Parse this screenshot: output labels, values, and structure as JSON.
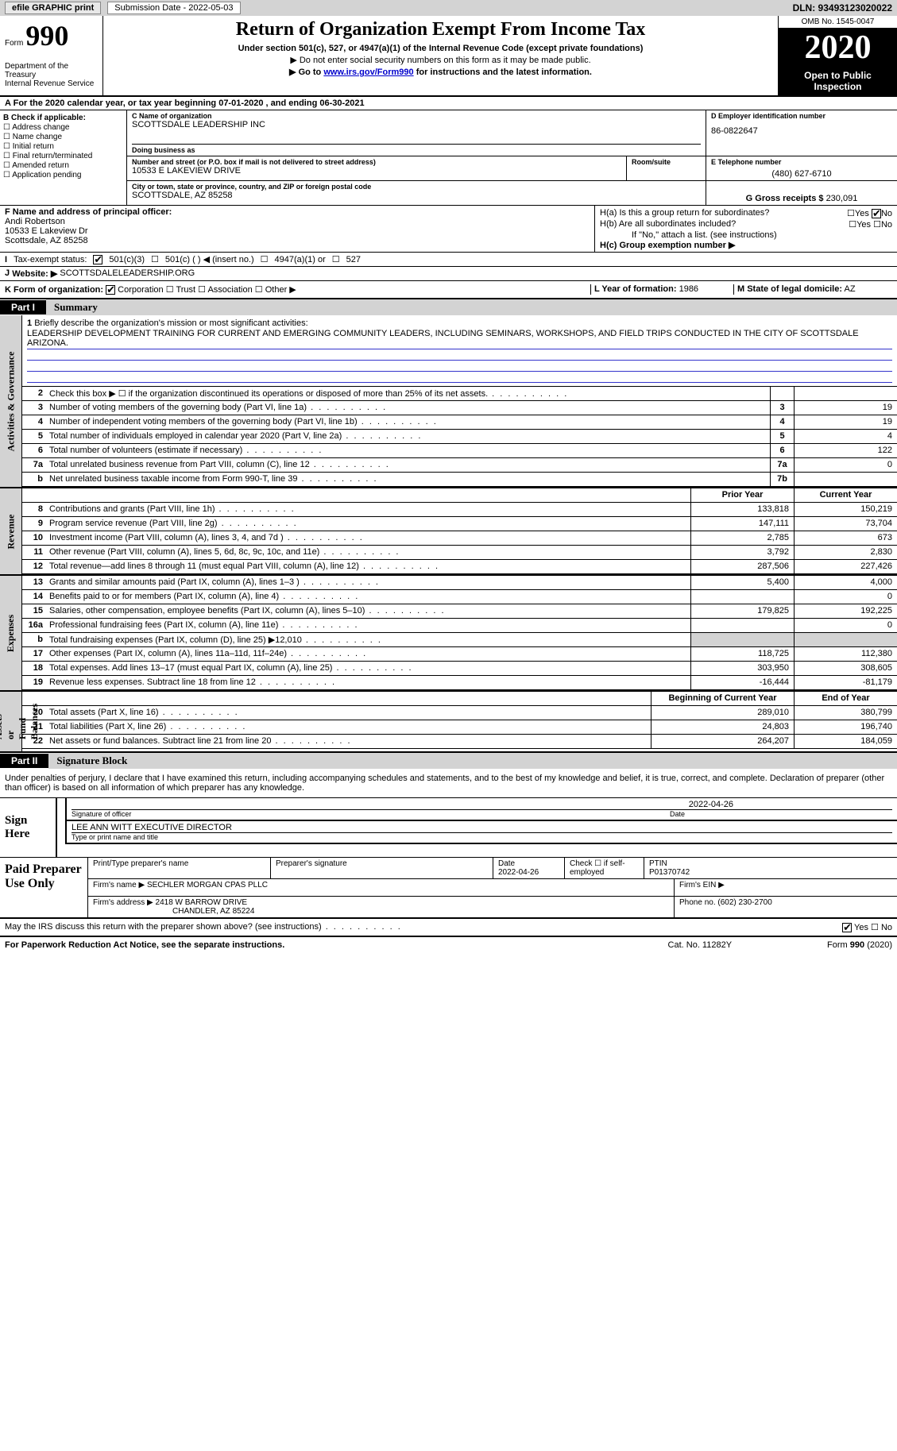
{
  "top_bar": {
    "efile": "efile GRAPHIC print",
    "sub_label": "Submission Date - 2022-05-03",
    "dln": "DLN: 93493123020022"
  },
  "header": {
    "form_label": "Form",
    "form_num": "990",
    "dept": "Department of the Treasury\nInternal Revenue Service",
    "title": "Return of Organization Exempt From Income Tax",
    "subtitle": "Under section 501(c), 527, or 4947(a)(1) of the Internal Revenue Code (except private foundations)",
    "note1": "▶ Do not enter social security numbers on this form as it may be made public.",
    "note2_pre": "▶ Go to ",
    "note2_link": "www.irs.gov/Form990",
    "note2_post": " for instructions and the latest information.",
    "omb": "OMB No. 1545-0047",
    "year": "2020",
    "open_pub": "Open to Public\nInspection"
  },
  "row_a": "For the 2020 calendar year, or tax year beginning 07-01-2020  , and ending 06-30-2021",
  "box_b": {
    "title": "B Check if applicable:",
    "opts": [
      "Address change",
      "Name change",
      "Initial return",
      "Final return/terminated",
      "Amended return",
      "Application pending"
    ]
  },
  "box_c": {
    "label": "C Name of organization",
    "name": "SCOTTSDALE LEADERSHIP INC",
    "dba_label": "Doing business as",
    "addr_label": "Number and street (or P.O. box if mail is not delivered to street address)",
    "addr": "10533 E LAKEVIEW DRIVE",
    "room_label": "Room/suite",
    "city_label": "City or town, state or province, country, and ZIP or foreign postal code",
    "city": "SCOTTSDALE, AZ  85258"
  },
  "box_d": {
    "label": "D Employer identification number",
    "val": "86-0822647"
  },
  "box_e": {
    "label": "E Telephone number",
    "val": "(480) 627-6710"
  },
  "box_g": {
    "label": "G Gross receipts $",
    "val": "230,091"
  },
  "box_f": {
    "label": "F  Name and address of principal officer:",
    "name": "Andi Robertson",
    "addr1": "10533 E Lakeview Dr",
    "addr2": "Scottsdale, AZ  85258"
  },
  "box_h": {
    "ha": "H(a)  Is this a group return for subordinates?",
    "hb": "H(b)  Are all subordinates included?",
    "hb_note": "If \"No,\" attach a list. (see instructions)",
    "hc": "H(c)  Group exemption number ▶",
    "yes": "Yes",
    "no": "No"
  },
  "row_i": {
    "label": "Tax-exempt status:",
    "o1": "501(c)(3)",
    "o2": "501(c) (   ) ◀ (insert no.)",
    "o3": "4947(a)(1) or",
    "o4": "527"
  },
  "row_j": {
    "label": "Website: ▶",
    "val": "SCOTTSDALELEADERSHIP.ORG"
  },
  "row_k": {
    "label": "K Form of organization:",
    "o1": "Corporation",
    "o2": "Trust",
    "o3": "Association",
    "o4": "Other ▶",
    "l_label": "L Year of formation:",
    "l_val": "1986",
    "m_label": "M State of legal domicile:",
    "m_val": "AZ"
  },
  "part1": {
    "num": "Part I",
    "title": "Summary"
  },
  "brief": {
    "num": "1",
    "label": "Briefly describe the organization's mission or most significant activities:",
    "text": "LEADERSHIP DEVELOPMENT TRAINING FOR CURRENT AND EMERGING COMMUNITY LEADERS, INCLUDING SEMINARS, WORKSHOPS, AND FIELD TRIPS CONDUCTED IN THE CITY OF SCOTTSDALE ARIZONA."
  },
  "gov_rows": [
    {
      "n": "2",
      "d": "Check this box ▶ ☐  if the organization discontinued its operations or disposed of more than 25% of its net assets.",
      "box": "",
      "v": ""
    },
    {
      "n": "3",
      "d": "Number of voting members of the governing body (Part VI, line 1a)",
      "box": "3",
      "v": "19"
    },
    {
      "n": "4",
      "d": "Number of independent voting members of the governing body (Part VI, line 1b)",
      "box": "4",
      "v": "19"
    },
    {
      "n": "5",
      "d": "Total number of individuals employed in calendar year 2020 (Part V, line 2a)",
      "box": "5",
      "v": "4"
    },
    {
      "n": "6",
      "d": "Total number of volunteers (estimate if necessary)",
      "box": "6",
      "v": "122"
    },
    {
      "n": "7a",
      "d": "Total unrelated business revenue from Part VIII, column (C), line 12",
      "box": "7a",
      "v": "0"
    },
    {
      "n": "b",
      "d": "Net unrelated business taxable income from Form 990-T, line 39",
      "box": "7b",
      "v": ""
    }
  ],
  "py_hdr": "Prior Year",
  "cy_hdr": "Current Year",
  "rev_rows": [
    {
      "n": "8",
      "d": "Contributions and grants (Part VIII, line 1h)",
      "py": "133,818",
      "cy": "150,219"
    },
    {
      "n": "9",
      "d": "Program service revenue (Part VIII, line 2g)",
      "py": "147,111",
      "cy": "73,704"
    },
    {
      "n": "10",
      "d": "Investment income (Part VIII, column (A), lines 3, 4, and 7d )",
      "py": "2,785",
      "cy": "673"
    },
    {
      "n": "11",
      "d": "Other revenue (Part VIII, column (A), lines 5, 6d, 8c, 9c, 10c, and 11e)",
      "py": "3,792",
      "cy": "2,830"
    },
    {
      "n": "12",
      "d": "Total revenue—add lines 8 through 11 (must equal Part VIII, column (A), line 12)",
      "py": "287,506",
      "cy": "227,426"
    }
  ],
  "exp_rows": [
    {
      "n": "13",
      "d": "Grants and similar amounts paid (Part IX, column (A), lines 1–3 )",
      "py": "5,400",
      "cy": "4,000"
    },
    {
      "n": "14",
      "d": "Benefits paid to or for members (Part IX, column (A), line 4)",
      "py": "",
      "cy": "0"
    },
    {
      "n": "15",
      "d": "Salaries, other compensation, employee benefits (Part IX, column (A), lines 5–10)",
      "py": "179,825",
      "cy": "192,225"
    },
    {
      "n": "16a",
      "d": "Professional fundraising fees (Part IX, column (A), line 11e)",
      "py": "",
      "cy": "0"
    },
    {
      "n": "b",
      "d": "Total fundraising expenses (Part IX, column (D), line 25) ▶12,010",
      "py": "grey",
      "cy": "grey"
    },
    {
      "n": "17",
      "d": "Other expenses (Part IX, column (A), lines 11a–11d, 11f–24e)",
      "py": "118,725",
      "cy": "112,380"
    },
    {
      "n": "18",
      "d": "Total expenses. Add lines 13–17 (must equal Part IX, column (A), line 25)",
      "py": "303,950",
      "cy": "308,605"
    },
    {
      "n": "19",
      "d": "Revenue less expenses. Subtract line 18 from line 12",
      "py": "-16,444",
      "cy": "-81,179"
    }
  ],
  "na_hdr1": "Beginning of Current Year",
  "na_hdr2": "End of Year",
  "na_rows": [
    {
      "n": "20",
      "d": "Total assets (Part X, line 16)",
      "py": "289,010",
      "cy": "380,799"
    },
    {
      "n": "21",
      "d": "Total liabilities (Part X, line 26)",
      "py": "24,803",
      "cy": "196,740"
    },
    {
      "n": "22",
      "d": "Net assets or fund balances. Subtract line 21 from line 20",
      "py": "264,207",
      "cy": "184,059"
    }
  ],
  "side_labels": {
    "gov": "Activities & Governance",
    "rev": "Revenue",
    "exp": "Expenses",
    "na": "Net Assets or\nFund Balances"
  },
  "part2": {
    "num": "Part II",
    "title": "Signature Block"
  },
  "sig_decl": "Under penalties of perjury, I declare that I have examined this return, including accompanying schedules and statements, and to the best of my knowledge and belief, it is true, correct, and complete. Declaration of preparer (other than officer) is based on all information of which preparer has any knowledge.",
  "sign": {
    "left": "Sign Here",
    "sig_date": "2022-04-26",
    "sig_label": "Signature of officer",
    "date_label": "Date",
    "name": "LEE ANN WITT  EXECUTIVE DIRECTOR",
    "name_label": "Type or print name and title"
  },
  "paid": {
    "left": "Paid Preparer Use Only",
    "h1": "Print/Type preparer's name",
    "h2": "Preparer's signature",
    "h3": "Date",
    "h3v": "2022-04-26",
    "h4": "Check ☐ if self-employed",
    "h5": "PTIN",
    "h5v": "P01370742",
    "firm_label": "Firm's name    ▶",
    "firm": "SECHLER MORGAN CPAS PLLC",
    "ein_label": "Firm's EIN ▶",
    "addr_label": "Firm's address ▶",
    "addr1": "2418 W BARROW DRIVE",
    "addr2": "CHANDLER, AZ  85224",
    "phone_label": "Phone no.",
    "phone": "(602) 230-2700"
  },
  "discuss": "May the IRS discuss this return with the preparer shown above? (see instructions)",
  "footer": {
    "left": "For Paperwork Reduction Act Notice, see the separate instructions.",
    "mid": "Cat. No. 11282Y",
    "right": "Form 990 (2020)"
  }
}
